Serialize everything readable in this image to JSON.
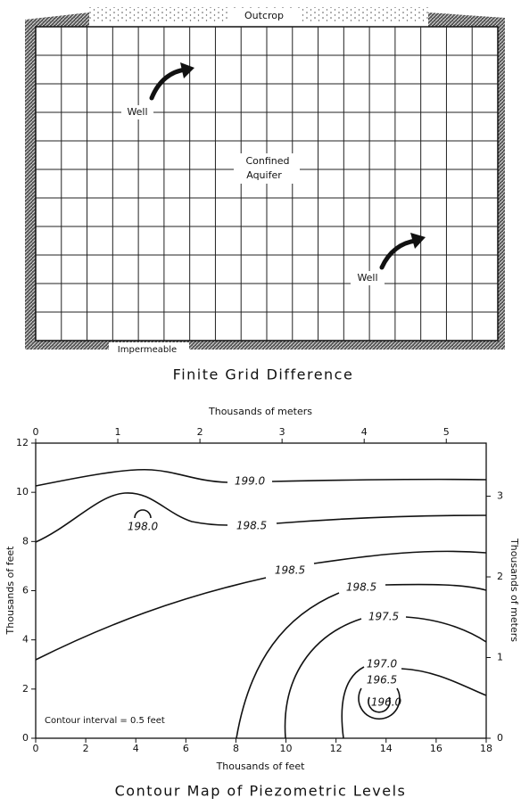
{
  "top_figure": {
    "outcrop": "Outcrop",
    "well_1": "Well",
    "aquifer": [
      "Confined",
      "Aquifer"
    ],
    "well_2": "Well",
    "impermeable": "Impermeable",
    "title": "Finite Grid Difference"
  },
  "contour_map": {
    "title": "Contour Map of Piezometric Levels",
    "top_axis": {
      "label": "Thousands of meters",
      "lim": [
        0,
        5.486
      ],
      "ticks": [
        0,
        1,
        2,
        3,
        4,
        5
      ]
    },
    "bottom_axis": {
      "label": "Thousands of feet",
      "lim": [
        0,
        18
      ],
      "ticks": [
        0,
        2,
        4,
        6,
        8,
        10,
        12,
        14,
        16,
        18
      ]
    },
    "left_axis": {
      "label": "Thousands of feet",
      "lim": [
        0,
        12
      ],
      "ticks": [
        0,
        2,
        4,
        6,
        8,
        10,
        12
      ]
    },
    "right_axis": {
      "label": "Thousands of meters",
      "lim": [
        0,
        3.658
      ],
      "ticks": [
        0,
        1,
        2,
        3
      ]
    },
    "contour_labels": [
      "199.0",
      "198.5",
      "198.0",
      "198.5",
      "198.5",
      "197.5",
      "197.0",
      "196.5",
      "196.0"
    ],
    "note": "Contour interval = 0.5 feet"
  }
}
